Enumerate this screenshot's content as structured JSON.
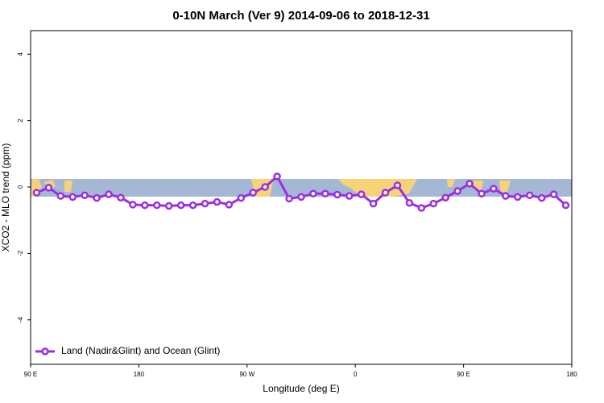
{
  "chart_data": {
    "type": "line",
    "title": "0-10N March (Ver 9)   2014-09-06 to 2018-12-31",
    "x_label": "Longitude (deg E)",
    "y_label": "XCO2 - MLO trend (ppm)",
    "xlim": [
      90,
      540
    ],
    "xticks": [
      {
        "value": 90,
        "label": "90 E"
      },
      180,
      {
        "value": 270,
        "label": "90 W"
      },
      {
        "value": 360,
        "label": "0"
      },
      {
        "value": 450,
        "label": "90 E"
      },
      {
        "value": 540,
        "label": "180"
      }
    ],
    "ylim": [
      -5.34,
      4.71
    ],
    "yticks": [
      -4,
      -2,
      0,
      2,
      4
    ],
    "legend": "bottom-left",
    "x": [
      95,
      105,
      115,
      125,
      135,
      145,
      155,
      165,
      175,
      185,
      195,
      205,
      215,
      225,
      235,
      245,
      255,
      265,
      275,
      285,
      295,
      305,
      315,
      325,
      335,
      345,
      355,
      365,
      375,
      385,
      395,
      405,
      415,
      425,
      435,
      445,
      455,
      465,
      475,
      485,
      495,
      505,
      515,
      525,
      535
    ],
    "series": [
      {
        "name": "Land (Nadir&Glint) and Ocean (Glint)",
        "color": "#9b2fe0",
        "values": [
          -0.17,
          -0.02,
          -0.27,
          -0.3,
          -0.25,
          -0.33,
          -0.22,
          -0.32,
          -0.53,
          -0.55,
          -0.55,
          -0.57,
          -0.55,
          -0.55,
          -0.5,
          -0.45,
          -0.53,
          -0.33,
          -0.17,
          0,
          0.32,
          -0.35,
          -0.3,
          -0.2,
          -0.2,
          -0.23,
          -0.27,
          -0.22,
          -0.5,
          -0.17,
          0.05,
          -0.48,
          -0.63,
          -0.5,
          -0.32,
          -0.12,
          0.1,
          -0.2,
          -0.05,
          -0.27,
          -0.3,
          -0.25,
          -0.33,
          -0.22,
          -0.55
        ]
      }
    ]
  }
}
